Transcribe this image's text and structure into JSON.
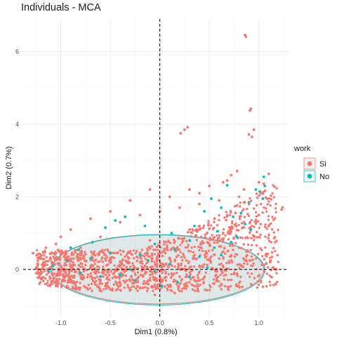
{
  "chart_data": {
    "type": "scatter",
    "title": "Individuals - MCA",
    "xlabel": "Dim1 (0.8%)",
    "ylabel": "Dim2 (0.7%)",
    "xlim": [
      -1.38,
      1.3
    ],
    "ylim": [
      -1.3,
      6.9
    ],
    "x_ticks": [
      -1.0,
      -0.5,
      0.0,
      0.5,
      1.0
    ],
    "x_tick_labels": [
      "-1.0",
      "-0.5",
      "0.0",
      "0.5",
      "1.0"
    ],
    "y_ticks": [
      0,
      2,
      4,
      6
    ],
    "y_tick_labels": [
      "0",
      "2",
      "4",
      "6"
    ],
    "grid": true,
    "reference_lines": {
      "x": 0,
      "y": 0,
      "style": "dashed"
    },
    "legend": {
      "title": "work",
      "position": "right"
    },
    "series": [
      {
        "name": "Si",
        "color": "#F8766D",
        "points": [
          [
            0.86,
            6.46
          ],
          [
            0.87,
            6.41
          ],
          [
            0.92,
            4.43
          ],
          [
            0.91,
            4.38
          ],
          [
            0.95,
            3.85
          ],
          [
            0.25,
            3.85
          ],
          [
            0.28,
            3.92
          ],
          [
            0.21,
            3.75
          ],
          [
            0.9,
            3.72
          ],
          [
            0.93,
            3.65
          ],
          [
            1.24,
            1.71
          ],
          [
            1.23,
            1.65
          ],
          [
            1.1,
            2.63
          ],
          [
            1.05,
            2.36
          ],
          [
            1.0,
            2.4
          ],
          [
            0.78,
            2.71
          ],
          [
            0.72,
            2.6
          ],
          [
            0.68,
            2.45
          ],
          [
            0.64,
            2.4
          ],
          [
            0.85,
            2.2
          ],
          [
            0.5,
            2.3
          ],
          [
            0.4,
            2.1
          ],
          [
            0.3,
            2.2
          ],
          [
            0.1,
            2.0
          ],
          [
            -0.1,
            2.2
          ],
          [
            -0.3,
            1.9
          ],
          [
            -0.5,
            1.6
          ],
          [
            -0.7,
            1.4
          ],
          [
            -0.9,
            1.1
          ],
          [
            -1.0,
            0.9
          ],
          [
            -1.2,
            0.3
          ],
          [
            -1.28,
            0.45
          ],
          [
            -1.15,
            0.6
          ],
          [
            -1.05,
            0.7
          ],
          [
            -0.95,
            0.5
          ],
          [
            -0.8,
            0.6
          ],
          [
            -0.6,
            0.9
          ],
          [
            -0.4,
            1.3
          ],
          [
            -0.2,
            1.5
          ],
          [
            0.0,
            1.6
          ],
          [
            0.2,
            1.7
          ],
          [
            0.4,
            1.8
          ],
          [
            0.6,
            1.9
          ],
          [
            0.8,
            2.0
          ],
          [
            0.9,
            1.8
          ],
          [
            1.0,
            1.5
          ],
          [
            1.1,
            1.2
          ],
          [
            0.95,
            0.9
          ],
          [
            0.8,
            0.6
          ],
          [
            0.6,
            0.3
          ],
          [
            0.4,
            0.1
          ],
          [
            0.2,
            -0.2
          ],
          [
            0.0,
            -0.55
          ],
          [
            -0.2,
            -0.5
          ],
          [
            -0.4,
            -0.45
          ],
          [
            -0.6,
            -0.3
          ],
          [
            -0.8,
            -0.1
          ],
          [
            -1.0,
            0.1
          ],
          [
            -0.5,
            0.2
          ],
          [
            0.1,
            0.3
          ],
          [
            0.5,
            0.7
          ],
          [
            0.7,
            1.0
          ],
          [
            0.85,
            1.3
          ],
          [
            0.3,
            1.1
          ],
          [
            -0.1,
            0.8
          ],
          [
            -0.3,
            0.5
          ],
          [
            0.25,
            0.0
          ],
          [
            0.35,
            -0.3
          ],
          [
            -0.05,
            -0.7
          ],
          [
            0.15,
            -0.65
          ]
        ]
      },
      {
        "name": "No",
        "color": "#00BFC4",
        "points": [
          [
            1.05,
            2.55
          ],
          [
            1.06,
            2.3
          ],
          [
            0.97,
            2.2
          ],
          [
            1.01,
            2.15
          ],
          [
            1.04,
            1.95
          ],
          [
            0.68,
            2.32
          ],
          [
            0.52,
            1.95
          ],
          [
            0.62,
            1.7
          ],
          [
            0.9,
            1.85
          ],
          [
            0.74,
            1.45
          ],
          [
            0.86,
            1.25
          ],
          [
            0.92,
            1.1
          ],
          [
            0.78,
            0.9
          ],
          [
            0.55,
            0.6
          ],
          [
            0.4,
            0.35
          ],
          [
            0.3,
            0.8
          ],
          [
            0.12,
            1.0
          ],
          [
            -0.05,
            0.7
          ],
          [
            -0.2,
            0.4
          ],
          [
            -0.35,
            1.45
          ],
          [
            -0.45,
            1.35
          ],
          [
            -0.55,
            1.15
          ],
          [
            -0.68,
            0.75
          ],
          [
            -0.82,
            0.55
          ],
          [
            -0.93,
            0.25
          ],
          [
            -1.08,
            0.1
          ],
          [
            -1.12,
            -0.05
          ],
          [
            -0.8,
            -0.1
          ],
          [
            -0.6,
            -0.2
          ],
          [
            -0.4,
            -0.15
          ],
          [
            -0.25,
            -0.3
          ],
          [
            -0.05,
            -0.05
          ],
          [
            0.02,
            -0.45
          ],
          [
            0.18,
            -0.35
          ],
          [
            0.3,
            -0.2
          ],
          [
            0.48,
            0.05
          ],
          [
            0.62,
            0.4
          ],
          [
            0.72,
            0.75
          ],
          [
            0.15,
            0.55
          ],
          [
            -0.12,
            0.25
          ],
          [
            -0.3,
            0.0
          ],
          [
            -0.5,
            0.45
          ],
          [
            -0.7,
            0.3
          ],
          [
            -0.9,
            0.6
          ],
          [
            0.1,
            0.15
          ],
          [
            0.35,
            1.2
          ],
          [
            0.58,
            1.05
          ],
          [
            0.82,
            1.55
          ],
          [
            0.45,
            1.6
          ],
          [
            -0.15,
            1.2
          ]
        ]
      }
    ],
    "ellipses": [
      {
        "series": "Si",
        "center": [
          -0.02,
          0.0
        ],
        "rx": 1.07,
        "ry": 0.95,
        "angle": 0
      },
      {
        "series": "No",
        "center": [
          -0.02,
          -0.01
        ],
        "rx": 1.08,
        "ry": 0.97,
        "angle": 0
      }
    ]
  }
}
